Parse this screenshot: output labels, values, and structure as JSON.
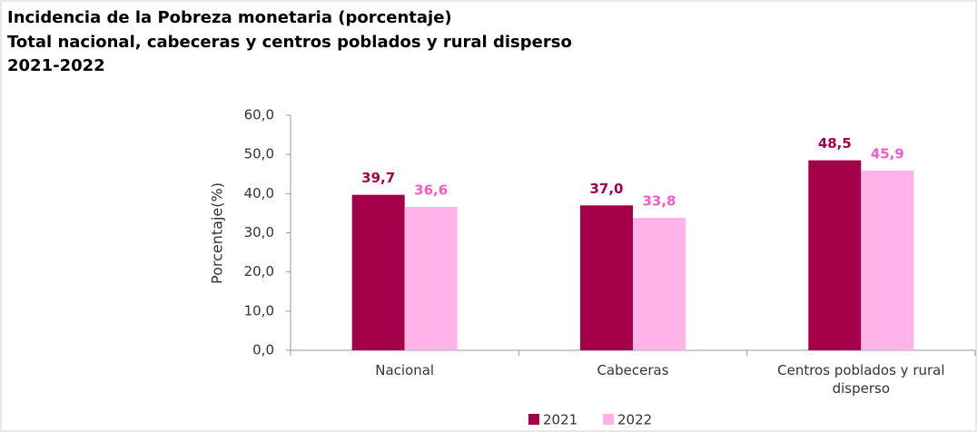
{
  "chart_data": {
    "type": "bar",
    "title": "Incidencia de la Pobreza monetaria (porcentaje)",
    "subtitle": "Total nacional, cabeceras y centros poblados y rural disperso",
    "period": "2021-2022",
    "ylabel": "Porcentaje(%)",
    "categories": [
      "Nacional",
      "Cabeceras",
      "Centros poblados y rural disperso"
    ],
    "series": [
      {
        "name": "2021",
        "color": "#a5004a",
        "label_color": "#a5004a",
        "values": [
          39.7,
          37.0,
          48.5
        ],
        "value_labels": [
          "39,7",
          "37,0",
          "48,5"
        ]
      },
      {
        "name": "2022",
        "color": "#ffb3e8",
        "label_color": "#f35cc4",
        "values": [
          36.6,
          33.8,
          45.9
        ],
        "value_labels": [
          "36,6",
          "33,8",
          "45,9"
        ]
      }
    ],
    "ylim": [
      0,
      60
    ],
    "yticks": [
      {
        "value": 0,
        "label": "0,0"
      },
      {
        "value": 10,
        "label": "10,0"
      },
      {
        "value": 20,
        "label": "20,0"
      },
      {
        "value": 30,
        "label": "30,0"
      },
      {
        "value": 40,
        "label": "40,0"
      },
      {
        "value": 50,
        "label": "50,0"
      },
      {
        "value": 60,
        "label": "60,0"
      }
    ],
    "grid": false,
    "legend": "bottom"
  }
}
